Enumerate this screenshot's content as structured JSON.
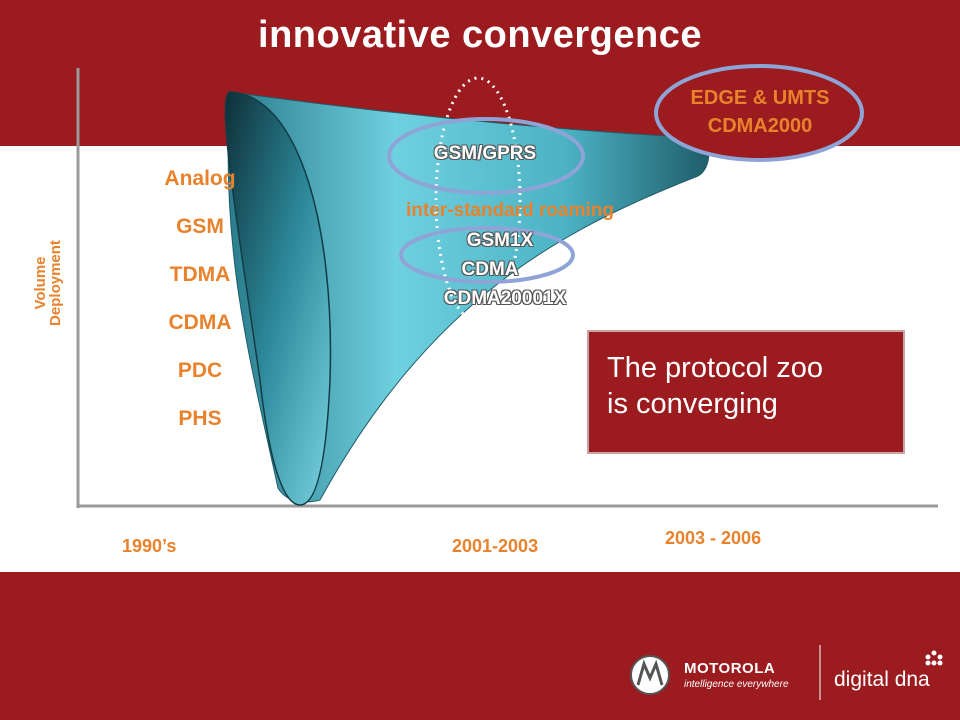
{
  "title": "innovative convergence",
  "y_axis_label": [
    "Volume",
    "Deployment"
  ],
  "left_standards": [
    "Analog",
    "GSM",
    "TDMA",
    "CDMA",
    "PDC",
    "PHS"
  ],
  "x_ticks": [
    "1990’s",
    "2001-2003",
    "2003 - 2006"
  ],
  "funnel_labels": {
    "gsm_gprs": "GSM/GPRS",
    "roaming": "inter-standard roaming",
    "gsm1x": "GSM1X",
    "cdma": "CDMA",
    "cdma20001x": "CDMA20001X"
  },
  "future_standards": [
    "EDGE & UMTS",
    "CDMA2000"
  ],
  "callout_text": [
    "The protocol zoo",
    "is converging"
  ],
  "logo": {
    "brand": "MOTOROLA",
    "tagline": "intelligence everywhere",
    "product": "digital dna"
  },
  "colors": {
    "brand_red": "#9b1b1f",
    "orange_text": "#e8822c",
    "funnel_teal": "#4fb8c9",
    "ellipse_blue": "#8fa4d6"
  }
}
